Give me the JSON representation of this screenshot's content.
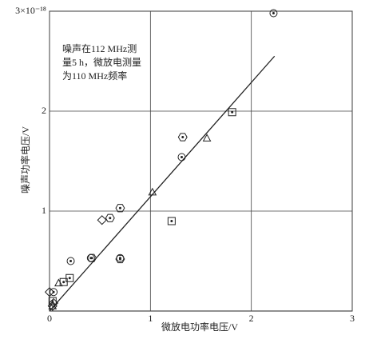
{
  "chart_data": {
    "type": "scatter",
    "x_label": "微放电功率电压/V",
    "y_label": "噪声功率电压/V",
    "annotation": [
      "噪声在112 MHz测",
      "量5 h，微放电测量",
      "为110 MHz频率"
    ],
    "xlim": [
      0,
      3
    ],
    "ylim": [
      0,
      3
    ],
    "xticks": [
      0,
      1,
      2,
      3
    ],
    "yticks": [
      1,
      2,
      {
        "value": 3,
        "label": "3×10⁻¹⁸"
      }
    ],
    "grid": true,
    "color": "#222222",
    "series": [
      {
        "marker": "circle-dot",
        "x": [
          2.22,
          1.31,
          0.21,
          0.04,
          0.41,
          0.7
        ],
        "values": [
          2.98,
          1.54,
          0.5,
          0.19,
          0.53,
          0.53
        ]
      },
      {
        "marker": "hexagon-dot",
        "x": [
          1.32,
          0.7,
          0.6,
          0.42,
          0.7
        ],
        "values": [
          1.74,
          1.03,
          0.93,
          0.53,
          0.52
        ]
      },
      {
        "marker": "triangle",
        "x": [
          1.56,
          1.02,
          0.09,
          0.03
        ],
        "values": [
          1.73,
          1.19,
          0.28,
          0.05
        ]
      },
      {
        "marker": "square-dot",
        "x": [
          1.81,
          1.21,
          0.2,
          0.14,
          0.03
        ],
        "values": [
          1.99,
          0.9,
          0.33,
          0.29,
          0.1
        ]
      },
      {
        "marker": "diamond",
        "x": [
          0.52,
          0.0,
          0.04,
          0.03
        ],
        "values": [
          0.91,
          0.19,
          0.08,
          0.05
        ]
      }
    ],
    "fit_line": {
      "x": [
        0,
        2.23
      ],
      "values": [
        0,
        2.55
      ]
    }
  }
}
